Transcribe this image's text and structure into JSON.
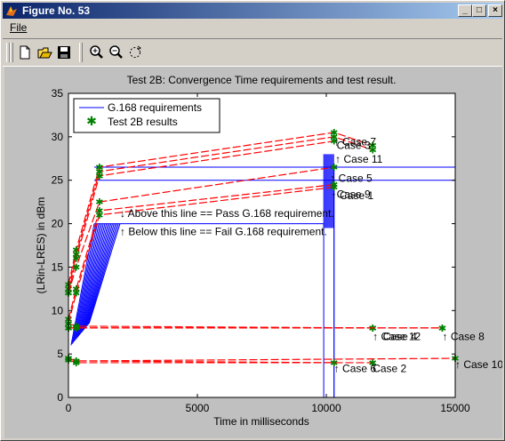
{
  "window": {
    "title": "Figure No. 53"
  },
  "controls": {
    "minimize": "_",
    "maximize": "□",
    "close": "×"
  },
  "menu": {
    "file": "File"
  },
  "toolbar": [
    "new-figure-icon",
    "open-file-icon",
    "save-icon",
    "zoom-in-icon",
    "zoom-out-icon",
    "rotate-icon"
  ],
  "chart_data": {
    "type": "line",
    "title": "Test 2B: Convergence Time requirements and test result.",
    "xlabel": "Time in milliseconds",
    "ylabel": "(LRin-LRES) in dBm",
    "xlim": [
      0,
      15000
    ],
    "ylim": [
      0,
      35
    ],
    "xticks": [
      "0",
      "5000",
      "10000",
      "15000"
    ],
    "yticks": [
      "0",
      "5",
      "10",
      "15",
      "20",
      "25",
      "30",
      "35"
    ],
    "legend": {
      "position": "top-left",
      "entries": [
        "G.168 requirements",
        "Test 2B results"
      ]
    },
    "colors": {
      "requirements": "#0000ff",
      "results": "#ff0000",
      "markers": "#008000",
      "text": "#000000"
    },
    "requirements": {
      "envelopes": [
        {
          "x": [
            1000,
            10300,
            10300
          ],
          "y": [
            26.5,
            26.5,
            0
          ],
          "to": 15000
        },
        {
          "x": [
            1000,
            10300,
            10300
          ],
          "y": [
            25,
            25,
            0
          ],
          "to": 15000
        },
        {
          "x": [
            1000,
            9900,
            9900
          ],
          "y": [
            20,
            20,
            0
          ]
        }
      ],
      "ramp_lines": 18,
      "ramp_y": [
        6,
        20
      ],
      "ramp_x_start": [
        100,
        800
      ],
      "ramp_x_end": [
        1000,
        2000
      ]
    },
    "series": [
      {
        "label": "Case 7",
        "x": [
          0,
          300,
          1200,
          10300,
          11800
        ],
        "y": [
          13,
          17,
          26.5,
          30.5,
          29
        ]
      },
      {
        "label": "Case 3",
        "x": [
          0,
          300,
          1200,
          10300,
          11800
        ],
        "y": [
          12.5,
          16.5,
          26,
          30,
          28.5
        ]
      },
      {
        "label": "Case 11",
        "x": [
          0,
          300,
          1200,
          10300
        ],
        "y": [
          12,
          16,
          25.5,
          29.5
        ]
      },
      {
        "label": "Case 5",
        "x": [
          0,
          300,
          1200,
          10300
        ],
        "y": [
          12,
          15,
          22.5,
          26.5
        ]
      },
      {
        "label": "Case 1",
        "x": [
          0,
          300,
          1200,
          10300
        ],
        "y": [
          9,
          12.5,
          21.5,
          24.5
        ]
      },
      {
        "label": "Case 9",
        "x": [
          0,
          300,
          1200,
          10300
        ],
        "y": [
          8.5,
          12,
          21,
          24.2
        ]
      },
      {
        "label": "Case 12",
        "x": [
          0,
          300,
          11800,
          14500
        ],
        "y": [
          8.5,
          8.2,
          8,
          8
        ]
      },
      {
        "label": "Case 4",
        "x": [
          0,
          300,
          11800
        ],
        "y": [
          8,
          8,
          8
        ]
      },
      {
        "label": "Case 8",
        "x": [
          0,
          300,
          14500
        ],
        "y": [
          8,
          8,
          8
        ]
      },
      {
        "label": "Case 6",
        "x": [
          0,
          300,
          10300
        ],
        "y": [
          4.5,
          4.2,
          4
        ]
      },
      {
        "label": "Case 2",
        "x": [
          0,
          300,
          11800
        ],
        "y": [
          4.3,
          4,
          4
        ]
      },
      {
        "label": "Case 10",
        "x": [
          0,
          300,
          15000
        ],
        "y": [
          4.5,
          4.2,
          4.5
        ]
      }
    ],
    "annotations": [
      {
        "text": "↓ Above this line == Pass G.168 requirement.",
        "x": 2000,
        "y": 20.8
      },
      {
        "text": "↑ Below this line == Fail G.168 requirement.",
        "x": 2000,
        "y": 18.7
      },
      {
        "text": "↑ Case 7",
        "x": 10300,
        "y": 29.0
      },
      {
        "text": "Case 3",
        "x": 10400,
        "y": 28.6
      },
      {
        "text": "↑ Case 11",
        "x": 10350,
        "y": 27.0
      },
      {
        "text": "↑ Case 5",
        "x": 10150,
        "y": 24.8
      },
      {
        "text": "↑ Case 1",
        "x": 10200,
        "y": 22.8
      },
      {
        "text": "Case 9",
        "x": 10400,
        "y": 23.0
      },
      {
        "text": "↑ Case 12",
        "x": 11800,
        "y": 6.6
      },
      {
        "text": "Case 4",
        "x": 12200,
        "y": 6.6
      },
      {
        "text": "↑ Case 8",
        "x": 14500,
        "y": 6.6
      },
      {
        "text": "↑ Case 6",
        "x": 10300,
        "y": 2.9
      },
      {
        "text": "Case 2",
        "x": 11800,
        "y": 2.9
      },
      {
        "text": "↑ Case 10",
        "x": 15000,
        "y": 3.4
      }
    ]
  }
}
